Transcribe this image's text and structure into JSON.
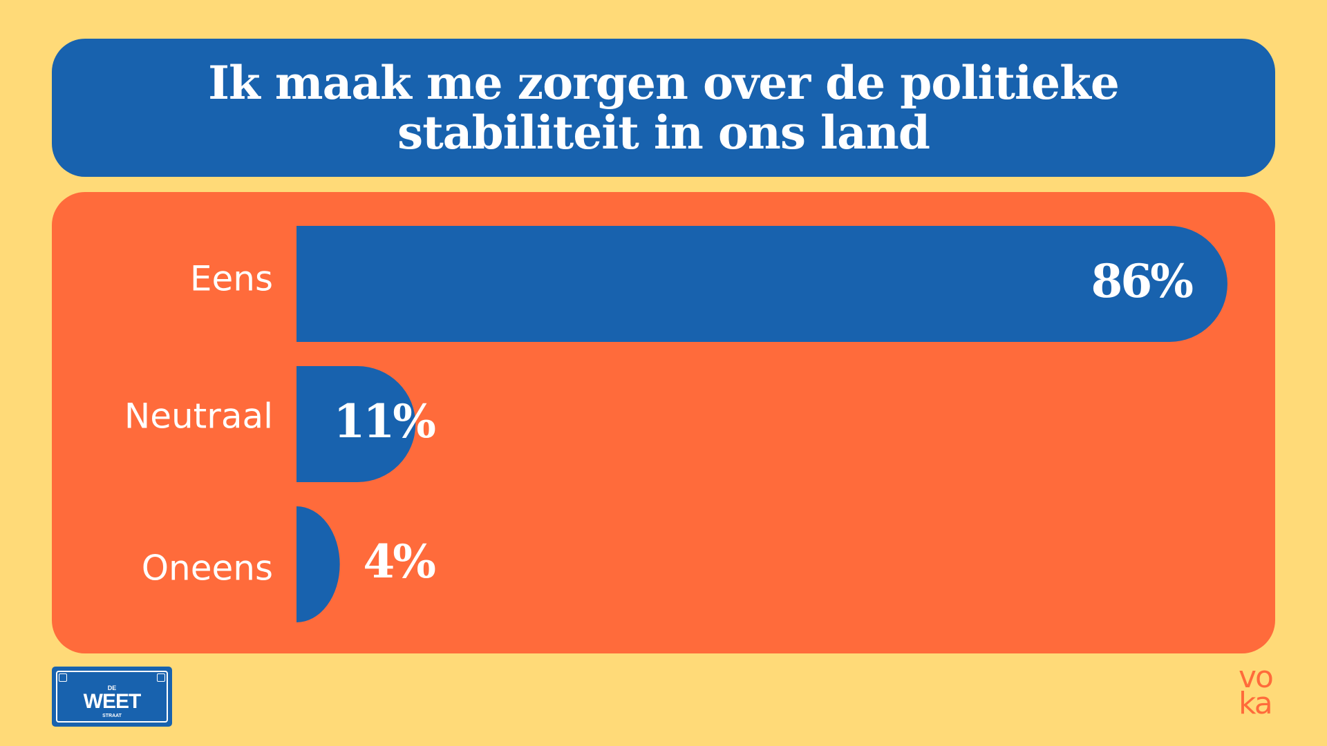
{
  "colors": {
    "background": "#FFDA78",
    "title_box": "#1862AE",
    "chart_box": "#FF6B3B",
    "bar": "#1862AE",
    "text": "#FFFFFF"
  },
  "title": "Ik maak me zorgen over de politieke stabiliteit in ons land",
  "chart_data": {
    "type": "bar",
    "orientation": "horizontal",
    "categories": [
      "Eens",
      "Neutraal",
      "Oneens"
    ],
    "values": [
      86,
      11,
      4
    ],
    "value_labels": [
      "86%",
      "11%",
      "4%"
    ],
    "xlim": [
      0,
      86
    ],
    "title": "Ik maak me zorgen over de politieke stabiliteit in ons land",
    "xlabel": "",
    "ylabel": "",
    "grid": false,
    "legend": "none"
  },
  "logos": {
    "weetstraat": {
      "top": "DE",
      "main": "WEET",
      "bottom": "STRAAT"
    },
    "voka": {
      "line1": "vo",
      "line2": "ka"
    }
  }
}
